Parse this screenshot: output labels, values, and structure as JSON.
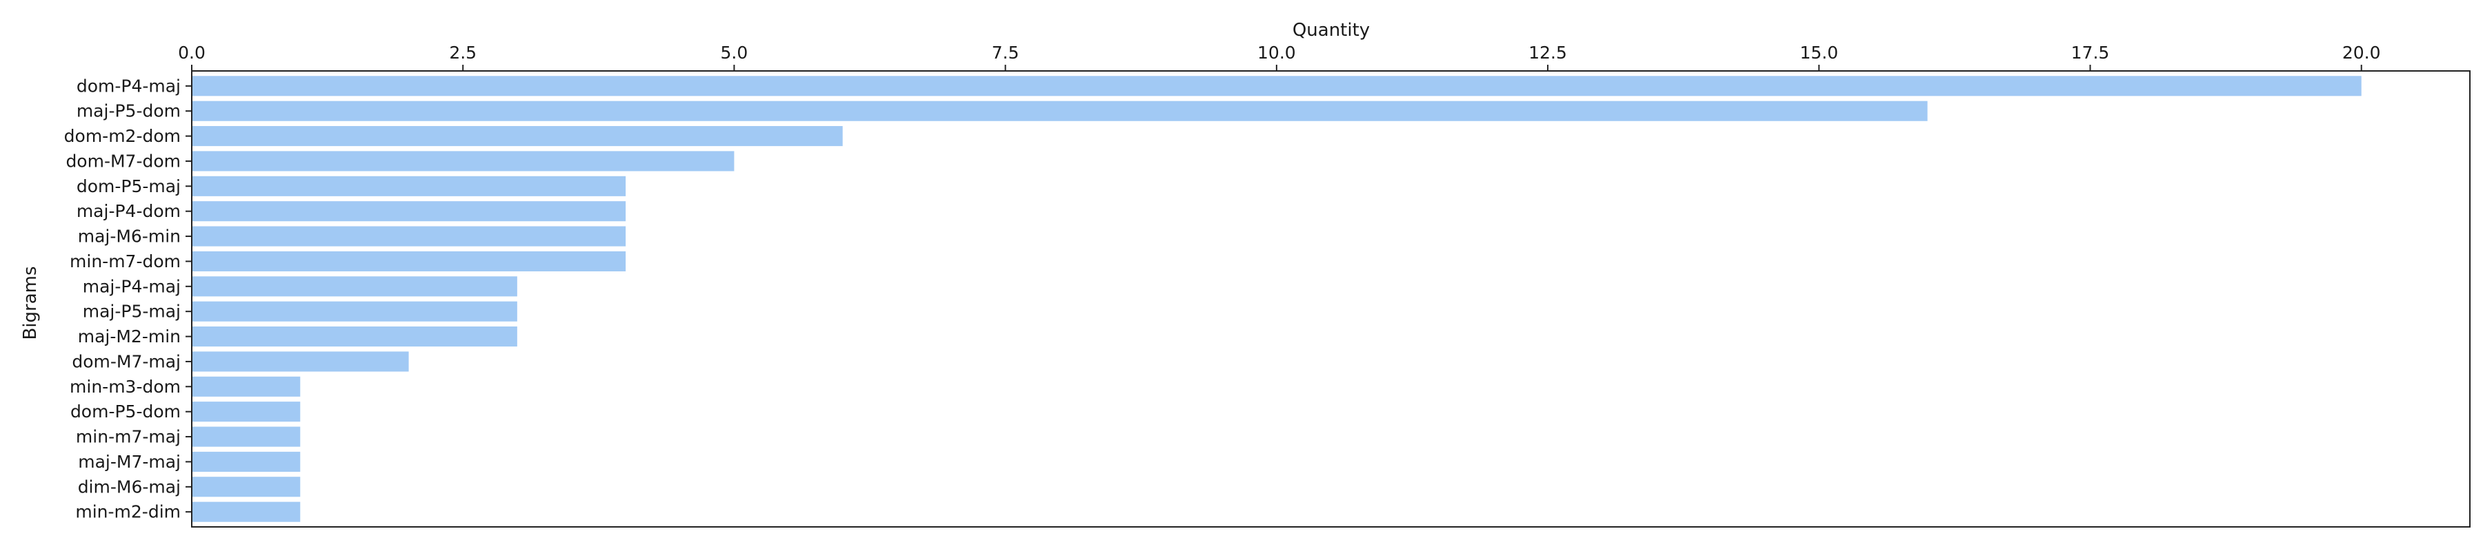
{
  "chart_data": {
    "type": "bar",
    "orientation": "horizontal",
    "categories": [
      "dom-P4-maj",
      "maj-P5-dom",
      "dom-m2-dom",
      "dom-M7-dom",
      "dom-P5-maj",
      "maj-P4-dom",
      "maj-M6-min",
      "min-m7-dom",
      "maj-P4-maj",
      "maj-P5-maj",
      "maj-M2-min",
      "dom-M7-maj",
      "min-m3-dom",
      "dom-P5-dom",
      "min-m7-maj",
      "maj-M7-maj",
      "dim-M6-maj",
      "min-m2-dim"
    ],
    "values": [
      20,
      16,
      6,
      5,
      4,
      4,
      4,
      4,
      3,
      3,
      3,
      2,
      1,
      1,
      1,
      1,
      1,
      1
    ],
    "title": "",
    "xlabel": "Quantity",
    "ylabel": "Bigrams",
    "xlim": [
      0,
      21
    ],
    "xticks": [
      "0.0",
      "2.5",
      "5.0",
      "7.5",
      "10.0",
      "12.5",
      "15.0",
      "17.5",
      "20.0"
    ],
    "x_axis_position": "top",
    "grid": false,
    "legend": "none",
    "bar_color": "#a1c9f4"
  }
}
